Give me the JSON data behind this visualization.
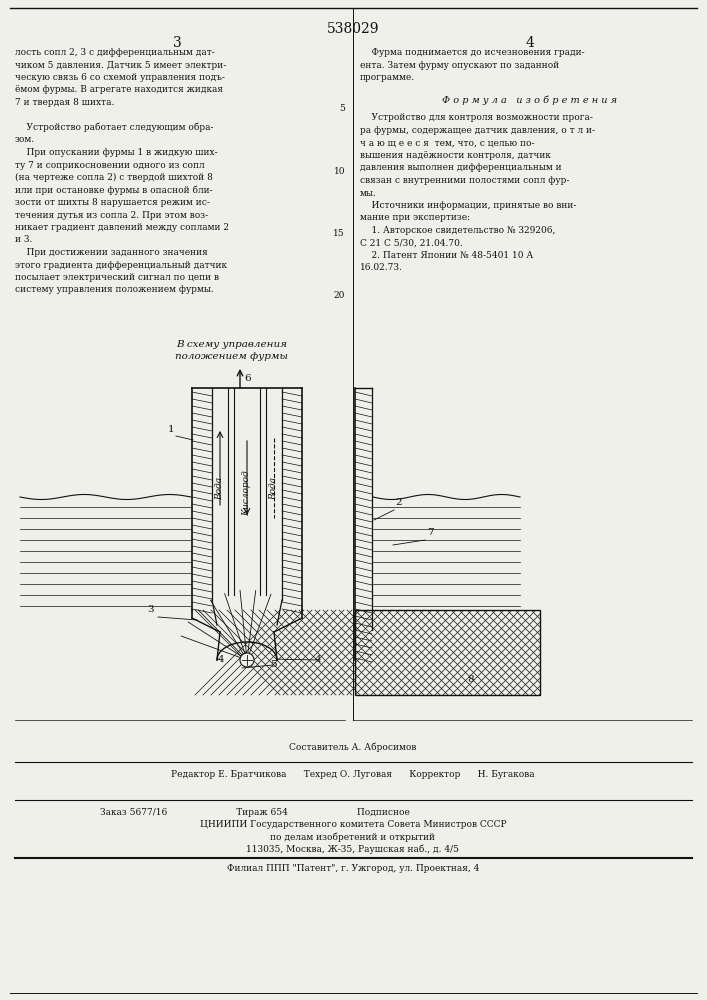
{
  "title_number": "538029",
  "left_text": [
    "лость сопл 2, 3 с дифференциальным дат-",
    "чиком 5 давления. Датчик 5 имеет электри-",
    "ческую связь 6 со схемой управления подъ-",
    "ёмом фурмы. В агрегате находится жидкая",
    "7 и твердая 8 шихта.",
    "",
    "    Устройство работает следующим обра-",
    "зом.",
    "    При опускании фурмы 1 в жидкую ших-",
    "ту 7 и соприкосновении одного из сопл",
    "(на чертеже сопла 2) с твердой шихтой 8",
    "или при остановке фурмы в опасной бли-",
    "зости от шихты 8 нарушается режим ис-",
    "течения дутья из сопла 2. При этом воз-",
    "никает градиент давлений между соплами 2",
    "и 3.",
    "    При достижении заданного значения",
    "этого градиента дифференциальный датчик",
    "посылает электрический сигнал по цепи в",
    "систему управления положением фурмы."
  ],
  "right_text_col1": [
    "    Фурма поднимается до исчезновения гради-",
    "ента. Затем фурму опускают по заданной",
    "программе."
  ],
  "formula_header": "Ф о р м у л а   и з о б р е т е н и я",
  "right_text_col2": [
    "    Устройство для контроля возможности прога-",
    "ра фурмы, содержащее датчик давления, о т л и-",
    "ч а ю щ е е с я  тем, что, с целью по-",
    "вышения надёжности контроля, датчик",
    "давления выполнен дифференциальным и",
    "связан с внутренними полостями сопл фур-",
    "мы.",
    "    Источники информации, принятые во вни-",
    "мание при экспертизе:",
    "    1. Авторское свидетельство № 329206,",
    "С 21 С 5/30, 21.04.70.",
    "    2. Патент Японии № 48-5401 10 А",
    "16.02.73."
  ],
  "bottom_text": [
    "Составитель А. Абросимов",
    "Редактор Е. Братчикова      Техред О. Луговая      Корректор      Н. Бугакова",
    "Заказ 5677/16                        Тираж 654                        Подписное",
    "ЦНИИПИ Государственного комитета Совета Министров СССР",
    "по делам изобретений и открытий",
    "113035, Москва, Ж-35, Раушская наб., д. 4/5",
    "Филиал ППП \"Патент\", г. Ужгород, ул. Проектная, 4"
  ],
  "bg_color": "#f0f0eb",
  "text_color": "#111111",
  "line_color": "#111111"
}
